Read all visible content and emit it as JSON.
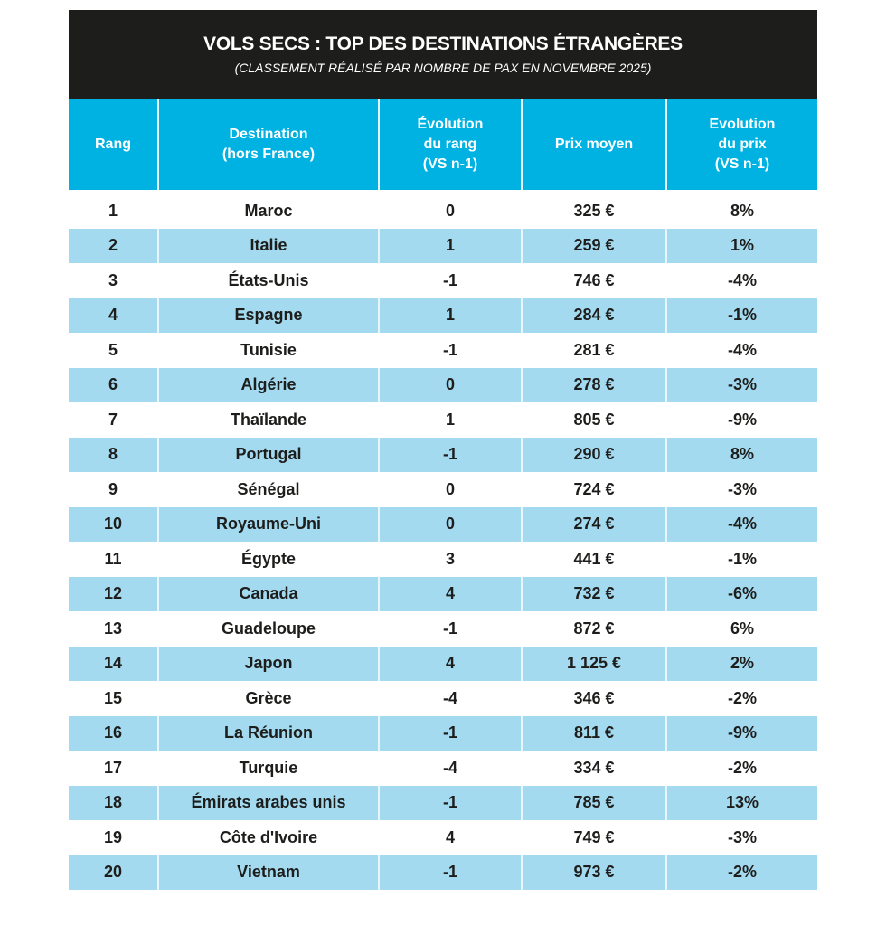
{
  "title": "VOLS SECS : TOP DES DESTINATIONS ÉTRANGÈRES",
  "subtitle": "(CLASSEMENT RÉALISÉ PAR NOMBRE DE PAX EN NOVEMBRE 2025)",
  "headers": [
    "Rang",
    "Destination\n(hors France)",
    "Évolution\ndu rang\n(VS n-1)",
    "Prix moyen",
    "Evolution\ndu prix\n(VS n-1)"
  ],
  "colors": {
    "title_bg": "#1d1d1b",
    "header_bg": "#00b2e2",
    "alt_row": "#a3daf0"
  },
  "rows": [
    [
      "1",
      "Maroc",
      "0",
      "325 €",
      "8%"
    ],
    [
      "2",
      "Italie",
      "1",
      "259 €",
      "1%"
    ],
    [
      "3",
      "États-Unis",
      "-1",
      "746 €",
      "-4%"
    ],
    [
      "4",
      "Espagne",
      "1",
      "284 €",
      "-1%"
    ],
    [
      "5",
      "Tunisie",
      "-1",
      "281 €",
      "-4%"
    ],
    [
      "6",
      "Algérie",
      "0",
      "278 €",
      "-3%"
    ],
    [
      "7",
      "Thaïlande",
      "1",
      "805 €",
      "-9%"
    ],
    [
      "8",
      "Portugal",
      "-1",
      "290 €",
      "8%"
    ],
    [
      "9",
      "Sénégal",
      "0",
      "724 €",
      "-3%"
    ],
    [
      "10",
      "Royaume-Uni",
      "0",
      "274 €",
      "-4%"
    ],
    [
      "11",
      "Égypte",
      "3",
      "441 €",
      "-1%"
    ],
    [
      "12",
      "Canada",
      "4",
      "732 €",
      "-6%"
    ],
    [
      "13",
      "Guadeloupe",
      "-1",
      "872 €",
      "6%"
    ],
    [
      "14",
      "Japon",
      "4",
      "1 125 €",
      "2%"
    ],
    [
      "15",
      "Grèce",
      "-4",
      "346 €",
      "-2%"
    ],
    [
      "16",
      "La Réunion",
      "-1",
      "811 €",
      "-9%"
    ],
    [
      "17",
      "Turquie",
      "-4",
      "334 €",
      "-2%"
    ],
    [
      "18",
      "Émirats arabes unis",
      "-1",
      "785 €",
      "13%"
    ],
    [
      "19",
      "Côte d'Ivoire",
      "4",
      "749 €",
      "-3%"
    ],
    [
      "20",
      "Vietnam",
      "-1",
      "973 €",
      "-2%"
    ]
  ]
}
